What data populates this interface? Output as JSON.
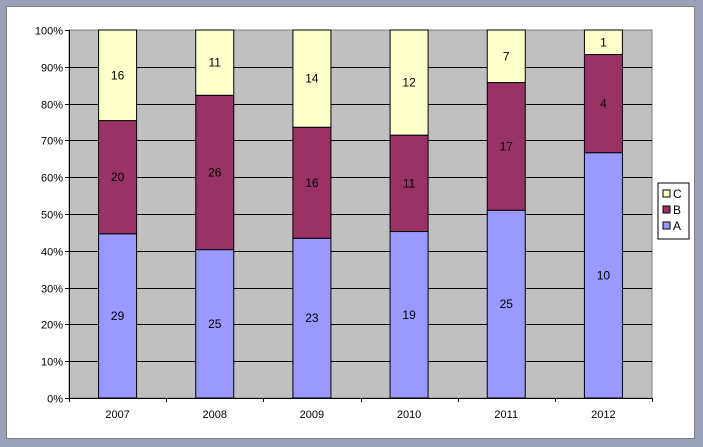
{
  "chart_data": {
    "type": "bar",
    "stacked": "percent",
    "categories": [
      "2007",
      "2008",
      "2009",
      "2010",
      "2011",
      "2012"
    ],
    "series": [
      {
        "name": "A",
        "values": [
          29,
          25,
          23,
          19,
          25,
          10
        ],
        "color": "#9999ff"
      },
      {
        "name": "B",
        "values": [
          20,
          26,
          16,
          11,
          17,
          4
        ],
        "color": "#993366"
      },
      {
        "name": "C",
        "values": [
          16,
          11,
          14,
          12,
          7,
          1
        ],
        "color": "#ffffcc"
      }
    ],
    "y_ticks": [
      "0%",
      "10%",
      "20%",
      "30%",
      "40%",
      "50%",
      "60%",
      "70%",
      "80%",
      "90%",
      "100%"
    ],
    "ylim": [
      0,
      100
    ],
    "grid": true,
    "legend": "right",
    "plot_background": "#c0c0c0"
  }
}
